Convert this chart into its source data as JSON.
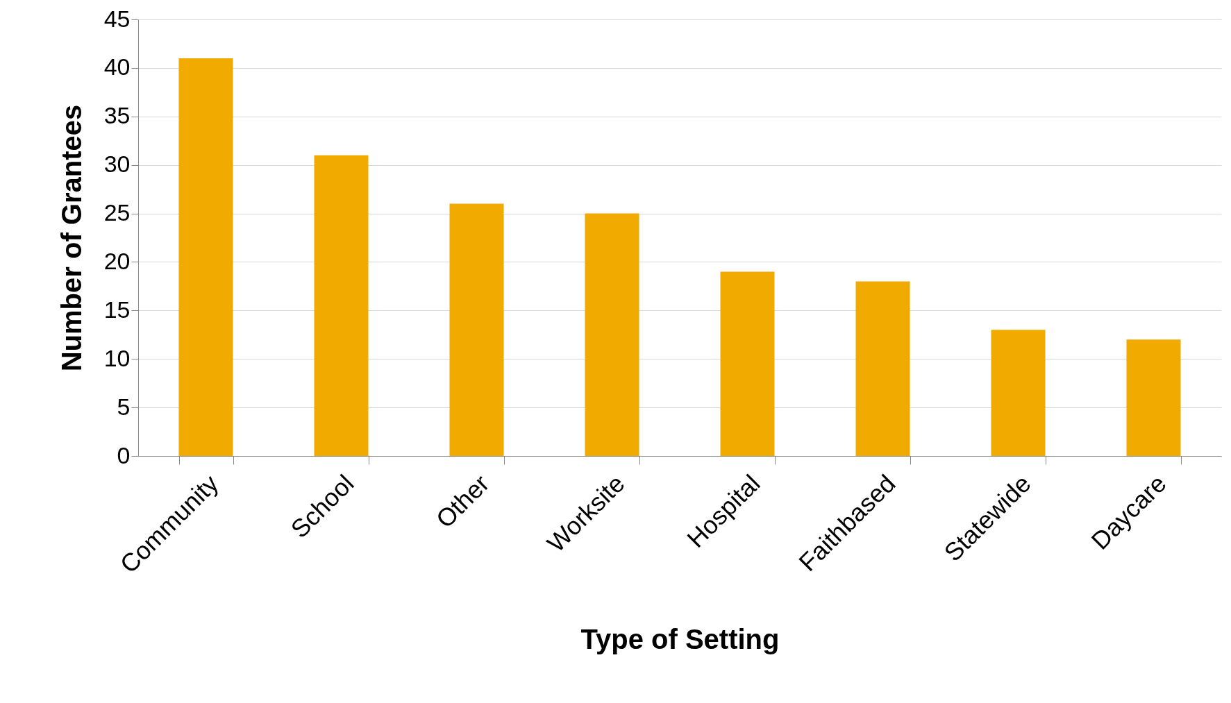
{
  "chart_data": {
    "type": "bar",
    "xlabel": "Type of Setting",
    "ylabel": "Number of Grantees",
    "categories": [
      "Community",
      "School",
      "Other",
      "Worksite",
      "Hospital",
      "Faithbased",
      "Statewide",
      "Daycare"
    ],
    "values": [
      41,
      31,
      26,
      25,
      19,
      18,
      13,
      12
    ],
    "color": "#f0aa00",
    "ylim": [
      0,
      45
    ],
    "yticks": [
      0,
      5,
      10,
      15,
      20,
      25,
      30,
      35,
      40,
      45
    ],
    "grid": "y"
  }
}
